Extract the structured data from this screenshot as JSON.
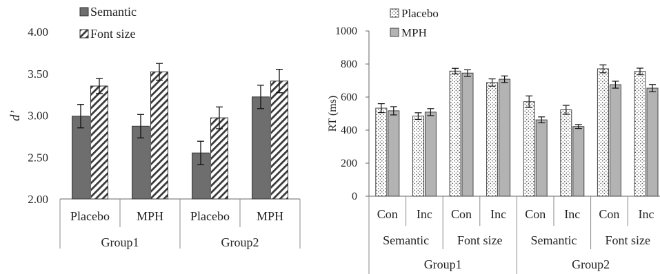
{
  "chart_data": [
    {
      "type": "bar",
      "ylabel": "d’",
      "ylim": [
        2.0,
        4.0
      ],
      "yticks": [
        "2.00",
        "2.50",
        "3.00",
        "3.50",
        "4.00"
      ],
      "categories": [
        "Placebo",
        "MPH",
        "Placebo",
        "MPH"
      ],
      "groups": [
        "Group1",
        "Group2"
      ],
      "series": [
        {
          "name": "Semantic",
          "pattern": "solid-gray",
          "color": "#6e6e6e",
          "values": [
            2.99,
            2.87,
            2.55,
            3.22
          ],
          "errors": [
            0.14,
            0.14,
            0.14,
            0.14
          ]
        },
        {
          "name": "Font size",
          "pattern": "diagonal-hatch",
          "color": "#ffffff",
          "values": [
            3.35,
            3.52,
            2.97,
            3.41
          ],
          "errors": [
            0.09,
            0.1,
            0.13,
            0.14
          ]
        }
      ],
      "legend_position": "top-left",
      "grid": false
    },
    {
      "type": "bar",
      "ylabel": "RT (ms)",
      "ylim": [
        0,
        1000
      ],
      "yticks": [
        "0",
        "200",
        "400",
        "600",
        "800",
        "1000"
      ],
      "categories": [
        "Con",
        "Inc",
        "Con",
        "Inc",
        "Con",
        "Inc",
        "Con",
        "Inc"
      ],
      "conditions": [
        "Semantic",
        "Font size",
        "Semantic",
        "Font size"
      ],
      "groups": [
        "Group1",
        "Group2"
      ],
      "series": [
        {
          "name": "Placebo",
          "pattern": "dotted",
          "color": "#ffffff",
          "values": [
            533,
            485,
            757,
            688,
            572,
            523,
            771,
            755
          ],
          "errors": [
            27,
            20,
            17,
            22,
            35,
            27,
            24,
            20
          ]
        },
        {
          "name": "MPH",
          "pattern": "solid-lightgray",
          "color": "#b3b3b3",
          "values": [
            517,
            509,
            745,
            708,
            462,
            422,
            675,
            654
          ],
          "errors": [
            25,
            21,
            20,
            20,
            18,
            12,
            21,
            22
          ]
        }
      ],
      "legend_position": "top-left",
      "grid": false
    }
  ]
}
